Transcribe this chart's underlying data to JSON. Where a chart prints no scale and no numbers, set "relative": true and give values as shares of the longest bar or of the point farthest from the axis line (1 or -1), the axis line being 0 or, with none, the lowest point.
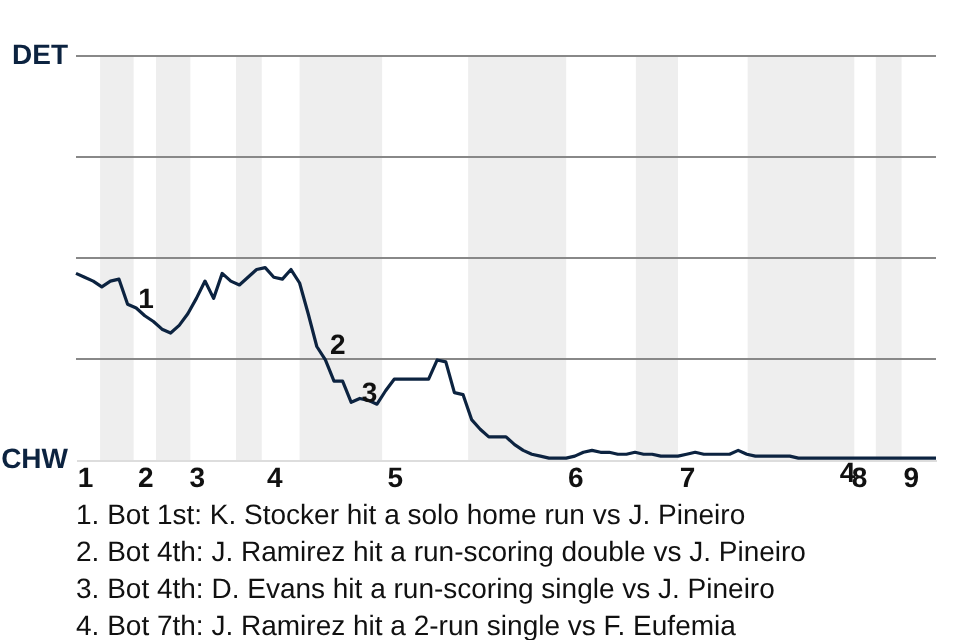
{
  "chart_data": {
    "type": "line",
    "relative": true,
    "categories": [
      null,
      "1",
      null,
      null,
      null,
      null,
      null,
      null,
      "2",
      null,
      null,
      null,
      null,
      null,
      "3",
      null,
      null,
      null,
      null,
      null,
      null,
      null,
      null,
      "4",
      null,
      null,
      null,
      null,
      null,
      null,
      null,
      null,
      null,
      null,
      null,
      null,
      null,
      "5",
      null,
      null,
      null,
      null,
      null,
      null,
      null,
      null,
      null,
      null,
      null,
      null,
      null,
      null,
      null,
      null,
      null,
      null,
      null,
      null,
      "6",
      null,
      null,
      null,
      null,
      null,
      null,
      null,
      null,
      null,
      null,
      null,
      null,
      "7",
      null,
      null,
      null,
      null,
      null,
      null,
      null,
      null,
      null,
      null,
      null,
      null,
      null,
      null,
      null,
      null,
      null,
      null,
      null,
      "8",
      null,
      null,
      null,
      null,
      null,
      "9",
      null,
      null,
      null
    ],
    "series": [
      {
        "color": "#0c2340",
        "values": [
          0.97,
          0.95,
          0.93,
          0.9,
          0.93,
          0.94,
          0.81,
          0.79,
          0.75,
          0.72,
          0.68,
          0.66,
          0.7,
          0.76,
          0.84,
          0.93,
          0.84,
          0.97,
          0.93,
          0.91,
          0.95,
          0.99,
          1,
          0.95,
          0.94,
          0.99,
          0.92,
          0.76,
          0.59,
          0.52,
          0.41,
          0.41,
          0.3,
          0.32,
          0.31,
          0.29,
          0.36,
          0.42,
          0.42,
          0.42,
          0.42,
          0.42,
          0.52,
          0.51,
          0.35,
          0.34,
          0.21,
          0.16,
          0.12,
          0.12,
          0.12,
          0.08,
          0.05,
          0.03,
          0.02,
          0.01,
          0.01,
          0.01,
          0.02,
          0.04,
          0.05,
          0.04,
          0.04,
          0.03,
          0.03,
          0.04,
          0.03,
          0.03,
          0.02,
          0.02,
          0.02,
          0.03,
          0.04,
          0.03,
          0.03,
          0.03,
          0.03,
          0.05,
          0.03,
          0.02,
          0.02,
          0.02,
          0.02,
          0.02,
          0.01,
          0.01,
          0.01,
          0.01,
          0.01,
          0.01,
          0.01,
          0.01,
          0.01,
          0.01,
          0.01,
          0.01,
          0.01,
          0.01,
          0.01,
          0.01,
          0.01
        ]
      }
    ],
    "marker": "none",
    "line_style": "solid",
    "ref_lines": [
      {
        "axis": "y",
        "value": 0.525,
        "color": "#888888"
      },
      {
        "axis": "y",
        "value": 1.05,
        "color": "#888888"
      },
      {
        "axis": "y",
        "value": 1.575,
        "color": "#888888"
      },
      {
        "axis": "y",
        "value": 2.1,
        "color": "#888888"
      }
    ],
    "annotations": [
      "DET",
      "CHW",
      {
        "text": "1",
        "y": 0.81
      },
      {
        "text": "2",
        "y": 0.57
      },
      {
        "text": "3",
        "y": 0.32
      },
      {
        "text": "4",
        "y": 0.01
      },
      "1. Bot 1st: K. Stocker hit a solo home run vs J. Pineiro",
      "2. Bot 4th: J. Ramirez hit a run-scoring double vs J. Pineiro",
      "3. Bot 4th: D. Evans hit a run-scoring single vs J. Pineiro",
      "4. Bot 7th: J. Ramirez hit a 2-run single vs F. Eufemia"
    ]
  }
}
